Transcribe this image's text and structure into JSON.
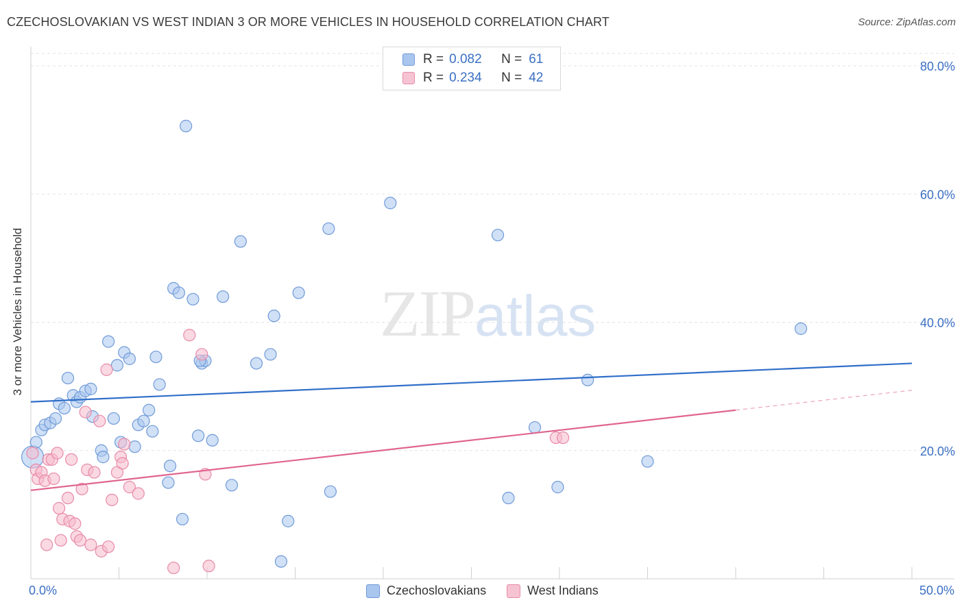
{
  "title": "CZECHOSLOVAKIAN VS WEST INDIAN 3 OR MORE VEHICLES IN HOUSEHOLD CORRELATION CHART",
  "source": "Source: ZipAtlas.com",
  "watermark": {
    "zip": "ZIP",
    "atlas": "atlas"
  },
  "colors": {
    "blue_fill": "#a9c6ee",
    "blue_stroke": "#6f9ad8",
    "blue_line": "#2f6ec9",
    "pink_fill": "#f6b9cc",
    "pink_stroke": "#e88aa8",
    "pink_line": "#e0648f",
    "axis_text": "#3a6fc4"
  },
  "legend_top": [
    {
      "r_label": "R =",
      "r_value": "0.082",
      "n_label": "N =",
      "n_value": "61"
    },
    {
      "r_label": "R =",
      "r_value": "0.234",
      "n_label": "N =",
      "n_value": "42"
    }
  ],
  "chart_data": {
    "type": "scatter",
    "title": "CZECHOSLOVAKIAN VS WEST INDIAN 3 OR MORE VEHICLES IN HOUSEHOLD CORRELATION CHART",
    "xlabel": "",
    "ylabel": "3 or more Vehicles in Household",
    "xlim": [
      0,
      50
    ],
    "ylim": [
      0,
      80
    ],
    "x_tick_labels": [
      "0.0%",
      "50.0%"
    ],
    "y_ticks": [
      20,
      40,
      60,
      80
    ],
    "y_tick_labels": [
      "20.0%",
      "40.0%",
      "60.0%",
      "80.0%"
    ],
    "grid": "horizontal dashed",
    "legend": "bottom-center",
    "series": [
      {
        "name": "Czechoslovakians",
        "r": 0.082,
        "n": 61,
        "trend": {
          "x": [
            0,
            50
          ],
          "y": [
            27.6,
            33.6
          ]
        },
        "points": [
          [
            0.1,
            19.0
          ],
          [
            0.3,
            21.3
          ],
          [
            0.6,
            23.2
          ],
          [
            0.8,
            24.0
          ],
          [
            1.1,
            24.3
          ],
          [
            1.4,
            25.0
          ],
          [
            1.6,
            27.3
          ],
          [
            1.9,
            26.6
          ],
          [
            2.1,
            31.3
          ],
          [
            2.4,
            28.6
          ],
          [
            2.6,
            27.6
          ],
          [
            2.8,
            28.3
          ],
          [
            3.1,
            29.3
          ],
          [
            3.4,
            29.6
          ],
          [
            3.5,
            25.3
          ],
          [
            4.0,
            20.0
          ],
          [
            4.1,
            19.0
          ],
          [
            4.4,
            37.0
          ],
          [
            4.7,
            25.0
          ],
          [
            4.9,
            33.3
          ],
          [
            5.1,
            21.3
          ],
          [
            5.3,
            35.3
          ],
          [
            5.6,
            34.3
          ],
          [
            5.9,
            20.6
          ],
          [
            6.1,
            24.0
          ],
          [
            6.4,
            24.6
          ],
          [
            6.7,
            26.3
          ],
          [
            6.9,
            23.0
          ],
          [
            7.1,
            34.6
          ],
          [
            7.3,
            30.3
          ],
          [
            7.8,
            15.0
          ],
          [
            7.9,
            17.6
          ],
          [
            8.1,
            45.3
          ],
          [
            8.4,
            44.6
          ],
          [
            8.6,
            9.3
          ],
          [
            8.8,
            70.6
          ],
          [
            9.2,
            43.6
          ],
          [
            9.5,
            22.3
          ],
          [
            9.7,
            33.6
          ],
          [
            9.9,
            34.0
          ],
          [
            10.3,
            21.6
          ],
          [
            10.9,
            44.0
          ],
          [
            11.4,
            14.6
          ],
          [
            11.9,
            52.6
          ],
          [
            12.8,
            33.6
          ],
          [
            13.6,
            35.0
          ],
          [
            13.8,
            41.0
          ],
          [
            14.2,
            2.7
          ],
          [
            14.6,
            9.0
          ],
          [
            15.2,
            44.6
          ],
          [
            16.9,
            54.6
          ],
          [
            17.0,
            13.6
          ],
          [
            20.4,
            58.6
          ],
          [
            26.5,
            53.6
          ],
          [
            27.1,
            12.6
          ],
          [
            28.6,
            23.6
          ],
          [
            29.9,
            14.3
          ],
          [
            31.6,
            31.0
          ],
          [
            35.0,
            18.3
          ],
          [
            43.7,
            39.0
          ],
          [
            9.6,
            34.0
          ]
        ]
      },
      {
        "name": "West Indians",
        "r": 0.234,
        "n": 42,
        "trend": {
          "x": [
            0,
            40
          ],
          "y": [
            13.8,
            26.3
          ]
        },
        "trend_dashed": {
          "x": [
            40,
            50
          ],
          "y": [
            26.3,
            29.4
          ]
        },
        "points": [
          [
            0.1,
            19.6
          ],
          [
            0.3,
            17.0
          ],
          [
            0.4,
            15.6
          ],
          [
            0.6,
            16.6
          ],
          [
            0.8,
            15.3
          ],
          [
            0.9,
            5.3
          ],
          [
            1.0,
            18.6
          ],
          [
            1.2,
            18.6
          ],
          [
            1.3,
            15.6
          ],
          [
            1.5,
            19.6
          ],
          [
            1.6,
            11.0
          ],
          [
            1.7,
            6.0
          ],
          [
            1.8,
            9.3
          ],
          [
            2.1,
            12.6
          ],
          [
            2.2,
            9.0
          ],
          [
            2.3,
            18.6
          ],
          [
            2.5,
            8.6
          ],
          [
            2.6,
            6.6
          ],
          [
            2.8,
            6.0
          ],
          [
            2.9,
            14.0
          ],
          [
            3.1,
            26.0
          ],
          [
            3.2,
            17.0
          ],
          [
            3.4,
            5.3
          ],
          [
            3.6,
            16.6
          ],
          [
            3.9,
            24.6
          ],
          [
            4.0,
            4.3
          ],
          [
            4.3,
            32.6
          ],
          [
            4.4,
            5.0
          ],
          [
            4.6,
            12.3
          ],
          [
            4.9,
            16.6
          ],
          [
            5.1,
            19.0
          ],
          [
            5.2,
            18.0
          ],
          [
            5.3,
            21.0
          ],
          [
            5.6,
            14.3
          ],
          [
            6.1,
            13.3
          ],
          [
            8.1,
            1.7
          ],
          [
            9.0,
            38.0
          ],
          [
            9.7,
            35.0
          ],
          [
            9.9,
            16.3
          ],
          [
            10.1,
            2.0
          ],
          [
            29.8,
            22.0
          ],
          [
            30.2,
            22.0
          ]
        ]
      }
    ]
  }
}
